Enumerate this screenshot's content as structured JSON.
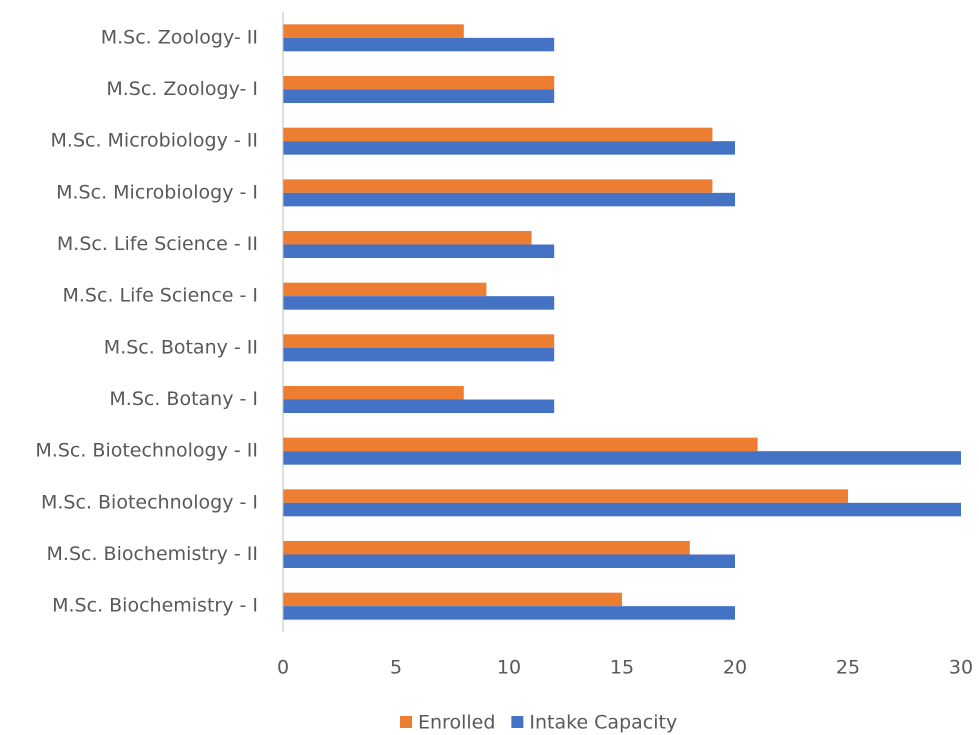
{
  "chart_data": {
    "type": "barh",
    "categories": [
      "M.Sc. Biochemistry - I",
      "M.Sc. Biochemistry - II",
      "M.Sc. Biotechnology - I",
      "M.Sc. Biotechnology - II",
      "M.Sc. Botany - I",
      "M.Sc. Botany - II",
      "M.Sc. Life Science - I",
      "M.Sc. Life Science - II",
      "M.Sc. Microbiology - I",
      "M.Sc. Microbiology - II",
      "M.Sc. Zoology- I",
      "M.Sc. Zoology- II"
    ],
    "series": [
      {
        "name": "Enrolled",
        "color": "#ed7d31",
        "values": [
          15,
          18,
          25,
          21,
          8,
          12,
          9,
          11,
          19,
          19,
          12,
          8
        ]
      },
      {
        "name": "Intake Capacity",
        "color": "#4472c4",
        "values": [
          20,
          20,
          30,
          30,
          12,
          12,
          12,
          12,
          20,
          20,
          12,
          12
        ]
      }
    ],
    "xlim": [
      0,
      30
    ],
    "xticks": [
      0,
      5,
      10,
      15,
      20,
      25,
      30
    ],
    "grid": false,
    "legend": "bottom"
  }
}
